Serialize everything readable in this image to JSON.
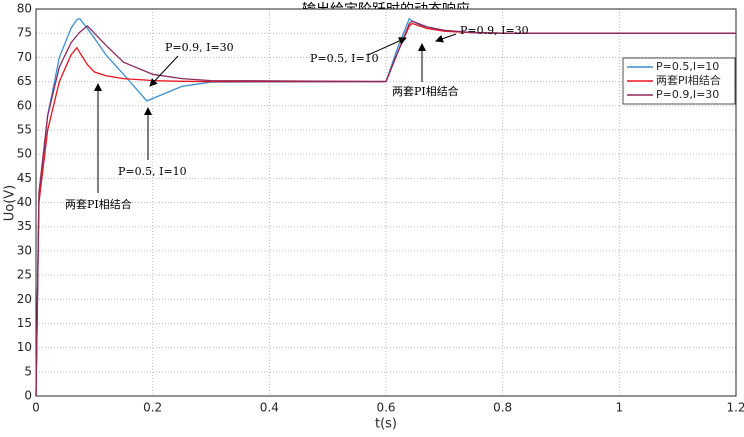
{
  "chart_data": {
    "type": "line",
    "title": "输出给定阶跃时的动态响应",
    "xlabel": "t(s)",
    "ylabel": "Uo(V)",
    "x": [
      0,
      0.005,
      0.02,
      0.04,
      0.06,
      0.07,
      0.075,
      0.088,
      0.1,
      0.12,
      0.15,
      0.19,
      0.2,
      0.25,
      0.3,
      0.6,
      0.62,
      0.64,
      0.645,
      0.67,
      0.7,
      0.75,
      0.8,
      1.2
    ],
    "series": [
      {
        "name": "P=0.5,I=10",
        "color": "#3b8fd0",
        "values": [
          0,
          40,
          58,
          70,
          76,
          77.8,
          78,
          76,
          74,
          70.5,
          66.5,
          61,
          61.5,
          64,
          64.9,
          65,
          72,
          78,
          77.5,
          76,
          75.5,
          75.1,
          75,
          75
        ]
      },
      {
        "name": "两套PI相结合",
        "color": "#e8141c",
        "values": [
          0,
          40,
          55,
          65,
          70.5,
          72,
          71,
          68.5,
          67,
          66.2,
          65.6,
          65.3,
          65.2,
          65.05,
          65,
          65,
          71,
          76.5,
          77,
          76,
          75.4,
          75.1,
          75,
          75
        ]
      },
      {
        "name": "P=0.9,I=30",
        "color": "#8b2a5c",
        "values": [
          0,
          42,
          58,
          68,
          73,
          74.5,
          75.2,
          76.5,
          75,
          72.5,
          69,
          67,
          66.5,
          65.6,
          65.2,
          65,
          71,
          77,
          77.5,
          76.3,
          75.6,
          75.1,
          75,
          75
        ]
      }
    ],
    "xlim": [
      0,
      1.2
    ],
    "xticks": [
      0,
      0.2,
      0.4,
      0.6,
      0.8,
      1,
      1.2
    ],
    "ylim": [
      0,
      80
    ],
    "yticks": [
      0,
      5,
      10,
      15,
      20,
      25,
      30,
      35,
      40,
      45,
      50,
      55,
      60,
      65,
      70,
      75,
      80
    ],
    "grid": true,
    "legend": "upper right",
    "annotations": [
      "P=0.9, I=30",
      "P=0.5, I=10",
      "两套PI相结合",
      "P=0.5, I=10",
      "P=0.9, I=30",
      "两套PI相结合"
    ]
  }
}
